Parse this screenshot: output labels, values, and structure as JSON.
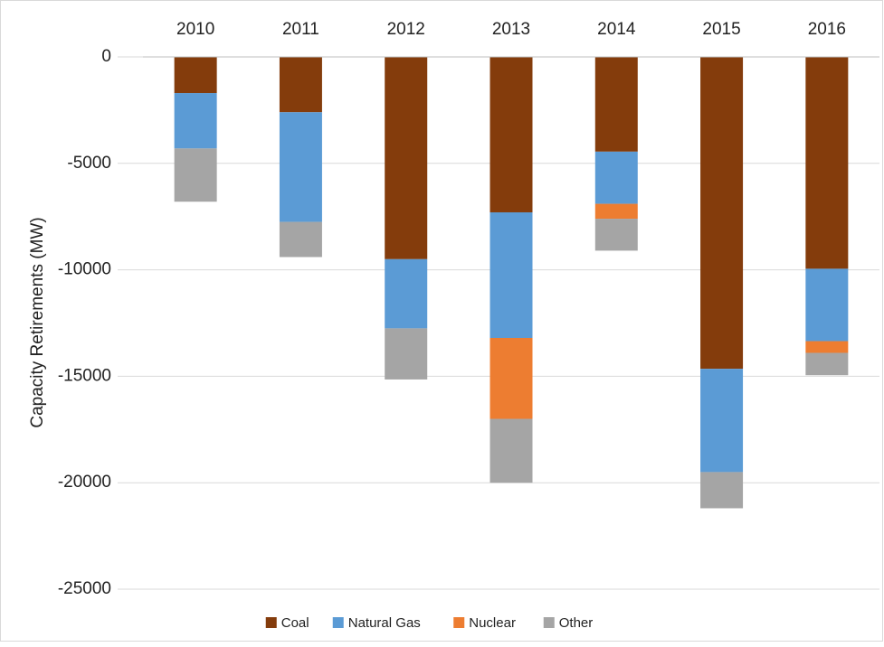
{
  "chart_data": {
    "type": "stacked-bar",
    "y_label": "Capacity Retirements (MW)",
    "categories": [
      "2010",
      "2011",
      "2012",
      "2013",
      "2014",
      "2015",
      "2016"
    ],
    "series": [
      {
        "name": "Coal",
        "color": "#843c0c",
        "values": [
          -1700,
          -2600,
          -9500,
          -7300,
          -4450,
          -14650,
          -9950
        ]
      },
      {
        "name": "Natural Gas",
        "color": "#5b9bd5",
        "values": [
          -2600,
          -5150,
          -3250,
          -5900,
          -2450,
          -4850,
          -3400
        ]
      },
      {
        "name": "Nuclear",
        "color": "#ed7d31",
        "values": [
          0,
          0,
          0,
          -3800,
          -700,
          0,
          -550
        ]
      },
      {
        "name": "Other",
        "color": "#a5a5a5",
        "values": [
          -2500,
          -1650,
          -2400,
          -3000,
          -1500,
          -1700,
          -1050
        ]
      }
    ],
    "ylim": [
      -25000,
      0
    ],
    "yticks": [
      0,
      -5000,
      -10000,
      -15000,
      -20000,
      -25000
    ],
    "grid": true,
    "legend": "bottom"
  }
}
